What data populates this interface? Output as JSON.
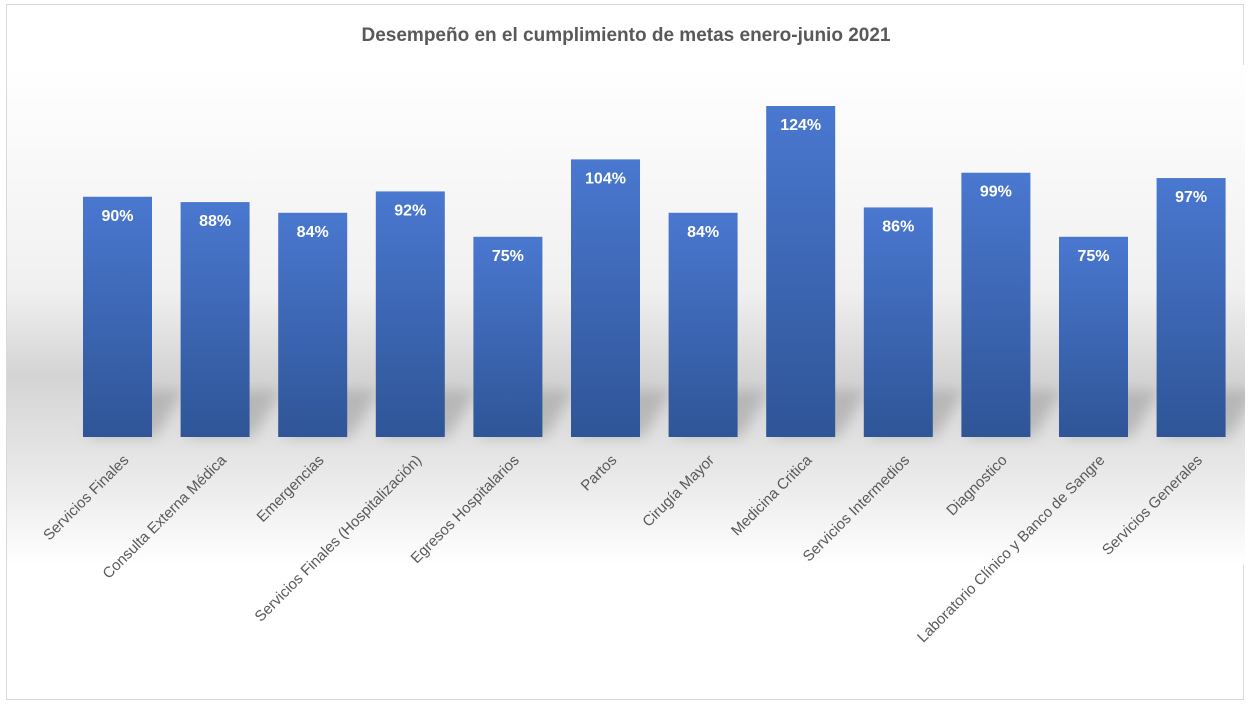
{
  "chart_data": {
    "type": "bar",
    "title": "Desempeño en el cumplimiento de metas enero-junio 2021",
    "categories": [
      "Servicios Finales",
      "Consulta Externa Médica",
      "Emergencias",
      "Servicios Finales (Hospitalización)",
      "Egresos Hospitalarios",
      "Partos",
      "Cirugía Mayor",
      "Medicina Critica",
      "Servicios Intermedios",
      "Diagnostico",
      "Laboratorio Clínico y Banco de Sangre",
      "Servicios Generales"
    ],
    "values": [
      90,
      88,
      84,
      92,
      75,
      104,
      84,
      124,
      86,
      99,
      75,
      97
    ],
    "value_labels": [
      "90%",
      "88%",
      "84%",
      "92%",
      "75%",
      "104%",
      "84%",
      "124%",
      "86%",
      "99%",
      "75%",
      "97%"
    ],
    "ylim": [
      0,
      130
    ],
    "grid": false,
    "legend": "none",
    "colors": {
      "bar_top": "#4a78d0",
      "bar_bottom": "#2f5597",
      "value_label": "#ffffff",
      "category_label": "#595959",
      "title": "#595959"
    }
  }
}
